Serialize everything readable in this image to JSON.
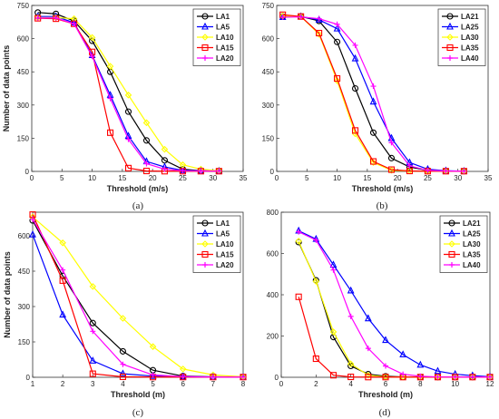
{
  "chart_data": [
    {
      "type": "line",
      "caption": "(a)",
      "xlabel": "Threshold (m/s)",
      "ylabel": "Number of data points",
      "xlim": [
        0,
        35
      ],
      "ylim": [
        0,
        750
      ],
      "xticks": [
        0,
        5,
        10,
        15,
        20,
        25,
        30,
        35
      ],
      "yticks": [
        0,
        150,
        300,
        450,
        600,
        750
      ],
      "legend_position": "top-right",
      "x": [
        1,
        4,
        7,
        10,
        13,
        16,
        19,
        22,
        25,
        28,
        31
      ],
      "series": [
        {
          "name": "LA1",
          "color": "#000000",
          "marker": "circle",
          "values": [
            718,
            712,
            680,
            590,
            450,
            270,
            140,
            50,
            10,
            3,
            2
          ]
        },
        {
          "name": "LA5",
          "color": "#0000ff",
          "marker": "triangle",
          "values": [
            700,
            700,
            672,
            525,
            345,
            160,
            45,
            20,
            5,
            2,
            2
          ]
        },
        {
          "name": "LA10",
          "color": "#ffff00",
          "marker": "diamond",
          "values": [
            695,
            695,
            690,
            605,
            475,
            345,
            220,
            100,
            30,
            10,
            3
          ]
        },
        {
          "name": "LA15",
          "color": "#ff0000",
          "marker": "square",
          "values": [
            692,
            690,
            667,
            540,
            175,
            15,
            2,
            1,
            1,
            1,
            1
          ]
        },
        {
          "name": "LA20",
          "color": "#ff00ff",
          "marker": "plus",
          "values": [
            693,
            693,
            667,
            520,
            330,
            145,
            35,
            10,
            3,
            2,
            2
          ]
        }
      ]
    },
    {
      "type": "line",
      "caption": "(b)",
      "xlabel": "Threshold (m/s)",
      "ylabel": "",
      "xlim": [
        0,
        35
      ],
      "ylim": [
        0,
        750
      ],
      "xticks": [
        0,
        5,
        10,
        15,
        20,
        25,
        30,
        35
      ],
      "yticks": [
        0,
        150,
        300,
        450,
        600,
        750
      ],
      "legend_position": "top-right",
      "x": [
        1,
        4,
        7,
        10,
        13,
        16,
        19,
        22,
        25,
        28,
        31
      ],
      "series": [
        {
          "name": "LA21",
          "color": "#000000",
          "marker": "circle",
          "values": [
            700,
            700,
            680,
            585,
            375,
            175,
            60,
            20,
            5,
            2,
            1
          ]
        },
        {
          "name": "LA25",
          "color": "#0000ff",
          "marker": "triangle",
          "values": [
            697,
            700,
            685,
            645,
            510,
            315,
            150,
            40,
            10,
            3,
            1
          ]
        },
        {
          "name": "LA30",
          "color": "#ffff00",
          "marker": "diamond",
          "values": [
            702,
            700,
            620,
            410,
            170,
            40,
            5,
            2,
            1,
            1,
            1
          ]
        },
        {
          "name": "LA35",
          "color": "#ff0000",
          "marker": "square",
          "values": [
            708,
            700,
            625,
            420,
            185,
            45,
            8,
            2,
            1,
            1,
            1
          ]
        },
        {
          "name": "LA40",
          "color": "#ff00ff",
          "marker": "plus",
          "values": [
            697,
            698,
            690,
            665,
            570,
            385,
            130,
            25,
            5,
            2,
            1
          ]
        }
      ]
    },
    {
      "type": "line",
      "caption": "(c)",
      "xlabel": "Threshold (m)",
      "ylabel": "Number of data points",
      "xlim": [
        1,
        8
      ],
      "ylim": [
        0,
        700
      ],
      "xticks": [
        1,
        2,
        3,
        4,
        5,
        6,
        7,
        8
      ],
      "yticks": [
        0,
        150,
        300,
        450,
        600
      ],
      "legend_position": "top-right",
      "x": [
        1,
        2,
        3,
        4,
        5,
        6,
        7,
        8
      ],
      "series": [
        {
          "name": "LA1",
          "color": "#000000",
          "marker": "circle",
          "values": [
            665,
            430,
            230,
            110,
            30,
            5,
            2,
            1
          ]
        },
        {
          "name": "LA5",
          "color": "#0000ff",
          "marker": "triangle",
          "values": [
            605,
            265,
            70,
            15,
            5,
            2,
            1,
            1
          ]
        },
        {
          "name": "LA10",
          "color": "#ffff00",
          "marker": "diamond",
          "values": [
            680,
            570,
            385,
            250,
            130,
            35,
            10,
            2
          ]
        },
        {
          "name": "LA15",
          "color": "#ff0000",
          "marker": "square",
          "values": [
            690,
            410,
            15,
            2,
            1,
            1,
            1,
            1
          ]
        },
        {
          "name": "LA20",
          "color": "#ff00ff",
          "marker": "plus",
          "values": [
            670,
            455,
            195,
            55,
            10,
            3,
            1,
            1
          ]
        }
      ]
    },
    {
      "type": "line",
      "caption": "(d)",
      "xlabel": "Threshold (m)",
      "ylabel": "",
      "xlim": [
        0,
        12
      ],
      "ylim": [
        0,
        800
      ],
      "xticks": [
        0,
        2,
        4,
        6,
        8,
        10,
        12
      ],
      "yticks": [
        0,
        200,
        400,
        600,
        800
      ],
      "legend_position": "top-right",
      "x": [
        1,
        2,
        3,
        4,
        5,
        6,
        7,
        8,
        9,
        10,
        11,
        12
      ],
      "series": [
        {
          "name": "LA21",
          "color": "#000000",
          "marker": "circle",
          "values": [
            655,
            470,
            195,
            55,
            15,
            5,
            2,
            1,
            1,
            1,
            1,
            1
          ]
        },
        {
          "name": "LA25",
          "color": "#0000ff",
          "marker": "triangle",
          "values": [
            710,
            670,
            545,
            420,
            285,
            180,
            110,
            60,
            30,
            15,
            8,
            3
          ]
        },
        {
          "name": "LA30",
          "color": "#ffff00",
          "marker": "diamond",
          "values": [
            660,
            465,
            220,
            65,
            10,
            2,
            1,
            1,
            1,
            1,
            1,
            1
          ]
        },
        {
          "name": "LA35",
          "color": "#ff0000",
          "marker": "square",
          "values": [
            390,
            90,
            10,
            2,
            1,
            1,
            1,
            1,
            1,
            1,
            1,
            1
          ]
        },
        {
          "name": "LA40",
          "color": "#ff00ff",
          "marker": "plus",
          "values": [
            705,
            665,
            520,
            295,
            140,
            55,
            15,
            5,
            2,
            1,
            1,
            1
          ]
        }
      ]
    }
  ]
}
